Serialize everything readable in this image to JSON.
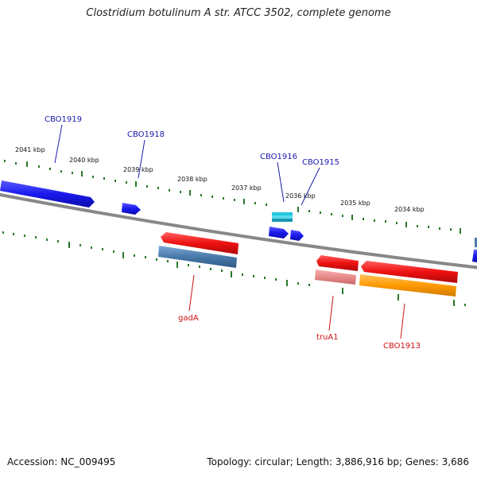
{
  "title": "Clostridium botulinum A str. ATCC 3502, complete genome",
  "footer": {
    "accession": "Accession: NC_009495",
    "topology": "Topology: circular; Length: 3,886,916 bp; Genes: 3,686"
  },
  "colors": {
    "forward_cds": "#1a1aee",
    "reverse_cds": "#ee1111",
    "forward_label": "#1a1aaa",
    "reverse_label": "#cc1111",
    "ticks": "#2a7a2a",
    "backbone": "#888888",
    "rna_light": "#22c8e0",
    "rna_light_reverse": "#e88a8a",
    "orange_feature": "#ff9a00",
    "steelblue_feature": "#4a7aaa"
  },
  "tick_labels": [
    "2041 kbp",
    "2040 kbp",
    "2039 kbp",
    "2038 kbp",
    "2037 kbp",
    "2036 kbp",
    "2035 kbp",
    "2034 kbp"
  ],
  "gene_labels": {
    "forward": [
      "CBO1919",
      "CBO1918",
      "CBO1916",
      "CBO1915"
    ],
    "reverse": [
      "gadA",
      "truA1",
      "CBO1913"
    ]
  }
}
